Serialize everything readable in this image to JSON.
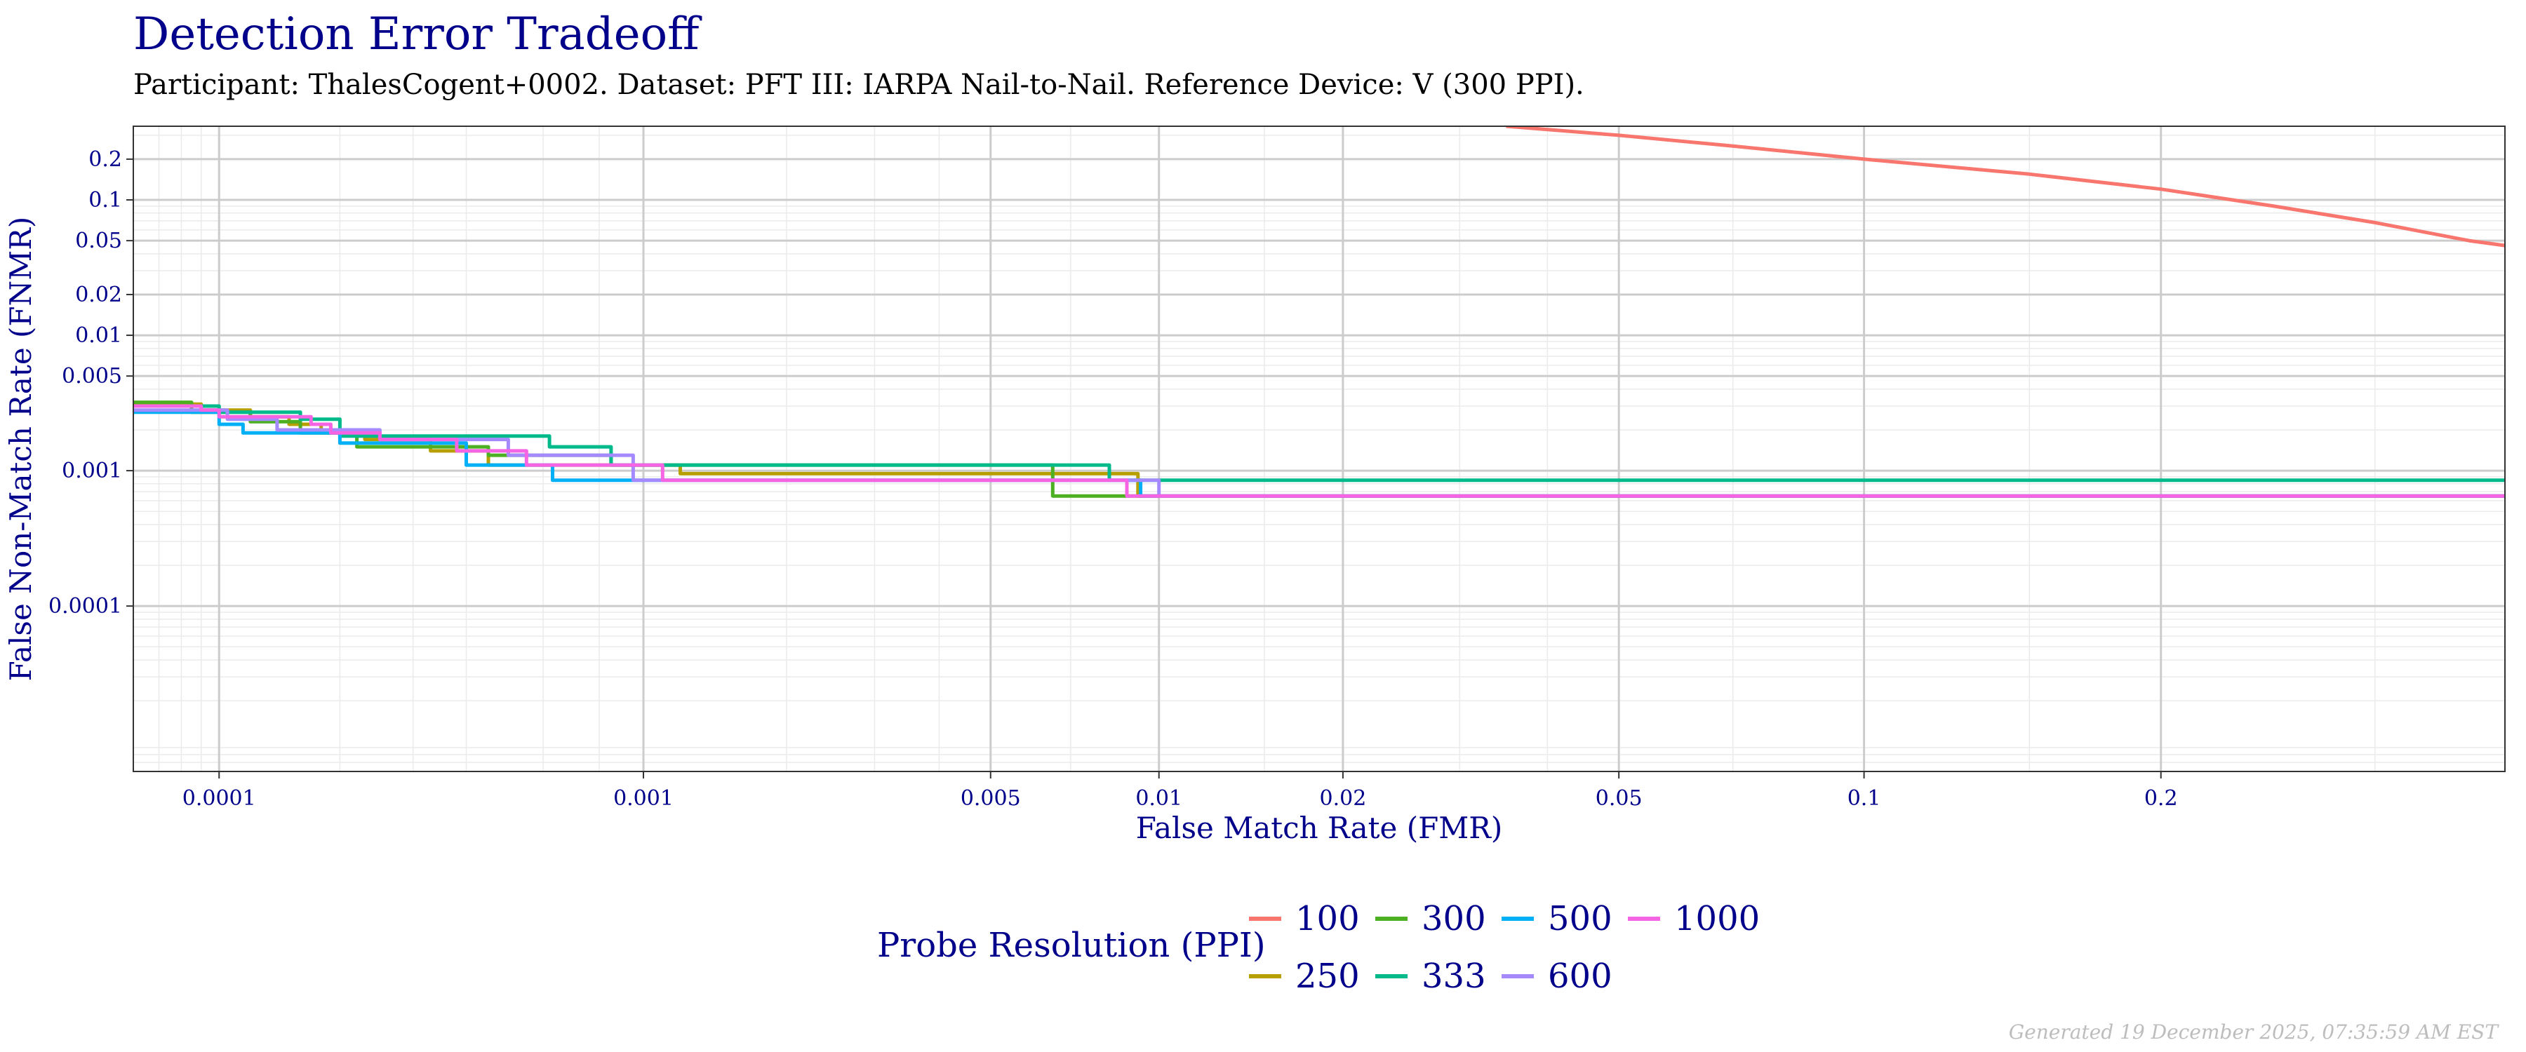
{
  "chart_data": {
    "type": "line",
    "title": "Detection Error Tradeoff",
    "subtitle": "Participant: ThalesCogent+0002. Dataset: PFT III: IARPA Nail-to-Nail. Reference Device: V (300 PPI).",
    "xlabel": "False Match Rate (FMR)",
    "ylabel": "False Non-Match Rate (FNMR)",
    "x_scale": "probit",
    "y_scale": "log",
    "xlim": [
      6e-05,
      0.37
    ],
    "ylim": [
      6e-06,
      0.35
    ],
    "x_ticks": [
      {
        "value": 0.0001,
        "label": "0.0001"
      },
      {
        "value": 0.001,
        "label": "0.001"
      },
      {
        "value": 0.005,
        "label": "0.005"
      },
      {
        "value": 0.01,
        "label": "0.01"
      },
      {
        "value": 0.02,
        "label": "0.02"
      },
      {
        "value": 0.05,
        "label": "0.05"
      },
      {
        "value": 0.1,
        "label": "0.1"
      },
      {
        "value": 0.2,
        "label": "0.2"
      }
    ],
    "y_ticks": [
      {
        "value": 0.0001,
        "label": "0.0001"
      },
      {
        "value": 0.001,
        "label": "0.001"
      },
      {
        "value": 0.005,
        "label": "0.005"
      },
      {
        "value": 0.01,
        "label": "0.01"
      },
      {
        "value": 0.02,
        "label": "0.02"
      },
      {
        "value": 0.05,
        "label": "0.05"
      },
      {
        "value": 0.1,
        "label": "0.1"
      },
      {
        "value": 0.2,
        "label": "0.2"
      }
    ],
    "grid": true,
    "legend": {
      "title": "Probe Resolution (PPI)",
      "position": "bottom"
    },
    "series": [
      {
        "name": "100",
        "color": "#F8766D",
        "step": false,
        "points": [
          [
            0.035,
            0.35
          ],
          [
            0.05,
            0.3
          ],
          [
            0.07,
            0.25
          ],
          [
            0.1,
            0.2
          ],
          [
            0.15,
            0.155
          ],
          [
            0.2,
            0.12
          ],
          [
            0.25,
            0.09
          ],
          [
            0.3,
            0.068
          ],
          [
            0.35,
            0.05
          ],
          [
            0.37,
            0.046
          ]
        ]
      },
      {
        "name": "250",
        "color": "#B79F00",
        "step": true,
        "points": [
          [
            6e-05,
            0.0031
          ],
          [
            9e-05,
            0.0028
          ],
          [
            0.00012,
            0.0025
          ],
          [
            0.00015,
            0.0022
          ],
          [
            0.00018,
            0.0019
          ],
          [
            0.00023,
            0.0017
          ],
          [
            0.00033,
            0.0014
          ],
          [
            0.00045,
            0.0011
          ],
          [
            0.0012,
            0.00095
          ],
          [
            0.0092,
            0.00065
          ],
          [
            0.37,
            0.00065
          ]
        ]
      },
      {
        "name": "300",
        "color": "#4DAF22",
        "step": true,
        "points": [
          [
            6e-05,
            0.0032
          ],
          [
            8.5e-05,
            0.0027
          ],
          [
            0.00012,
            0.0023
          ],
          [
            0.00016,
            0.0019
          ],
          [
            0.00022,
            0.0015
          ],
          [
            0.00045,
            0.0013
          ],
          [
            0.00085,
            0.0011
          ],
          [
            0.0065,
            0.00065
          ],
          [
            0.37,
            0.00065
          ]
        ]
      },
      {
        "name": "333",
        "color": "#00BA8B",
        "step": true,
        "points": [
          [
            6e-05,
            0.003
          ],
          [
            0.0001,
            0.0027
          ],
          [
            0.00016,
            0.0024
          ],
          [
            0.0002,
            0.0018
          ],
          [
            0.00062,
            0.0015
          ],
          [
            0.00085,
            0.0011
          ],
          [
            0.0082,
            0.00085
          ],
          [
            0.37,
            0.00085
          ]
        ]
      },
      {
        "name": "500",
        "color": "#00B0F6",
        "step": true,
        "points": [
          [
            6e-05,
            0.0027
          ],
          [
            0.0001,
            0.0022
          ],
          [
            0.000115,
            0.0019
          ],
          [
            0.0002,
            0.0016
          ],
          [
            0.0004,
            0.0011
          ],
          [
            0.00063,
            0.00085
          ],
          [
            0.0093,
            0.00065
          ],
          [
            0.37,
            0.00065
          ]
        ]
      },
      {
        "name": "600",
        "color": "#A58AFF",
        "step": true,
        "points": [
          [
            6e-05,
            0.0028
          ],
          [
            0.000105,
            0.0024
          ],
          [
            0.00014,
            0.002
          ],
          [
            0.00025,
            0.0017
          ],
          [
            0.0005,
            0.0013
          ],
          [
            0.00095,
            0.00085
          ],
          [
            0.01,
            0.00065
          ],
          [
            0.37,
            0.00065
          ]
        ]
      },
      {
        "name": "1000",
        "color": "#F564E3",
        "step": true,
        "points": [
          [
            6e-05,
            0.003
          ],
          [
            9e-05,
            0.0028
          ],
          [
            0.0001,
            0.0025
          ],
          [
            0.00017,
            0.0022
          ],
          [
            0.00019,
            0.0019
          ],
          [
            0.00025,
            0.0017
          ],
          [
            0.00038,
            0.0014
          ],
          [
            0.00055,
            0.0011
          ],
          [
            0.0011,
            0.00085
          ],
          [
            0.0088,
            0.00065
          ],
          [
            0.37,
            0.00065
          ]
        ]
      }
    ]
  },
  "footer": "Generated 19 December 2025, 07:35:59 AM EST"
}
